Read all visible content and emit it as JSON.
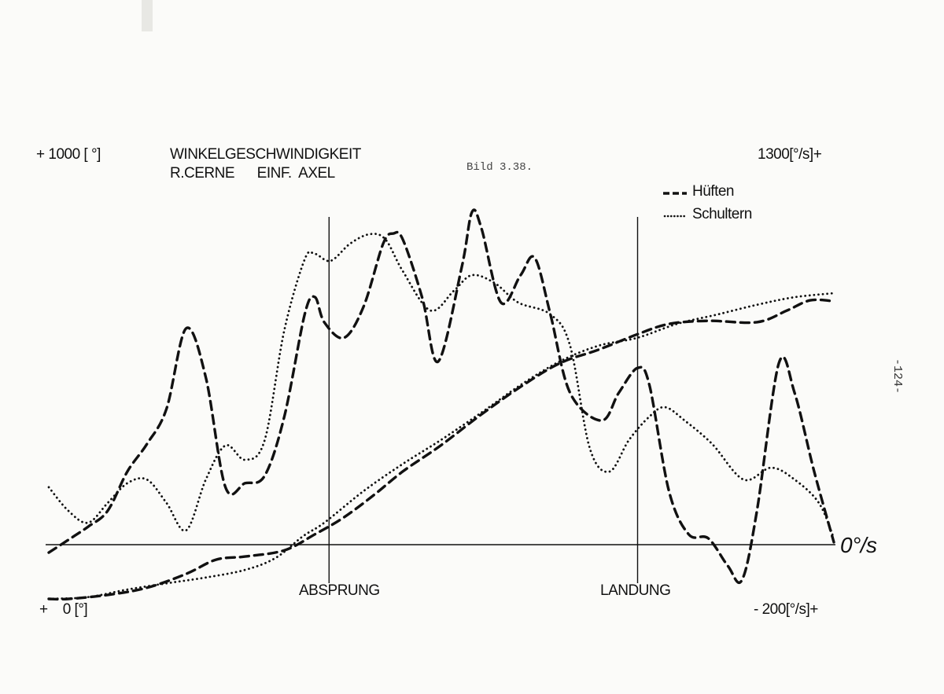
{
  "chart_data": {
    "type": "line",
    "title": "WINKELGESCHWINDIGKEIT",
    "subtitle": "R.CERNE      EINF.  AXEL",
    "figure_label": "Bild 3.38.",
    "page_number": "-124-",
    "left_axis": {
      "top_label": "+ 1000 [ °]",
      "bottom_label": "+    0 [°]",
      "range": [
        0,
        1000
      ],
      "unit": "°"
    },
    "right_axis": {
      "top_label": "1300[°/s]+",
      "bottom_label": "- 200[°/s]+",
      "zero_label": "0°/s",
      "range": [
        -200,
        1300
      ],
      "unit": "°/s"
    },
    "x_axis": {
      "note": "time, unlabeled; t expressed as percent of plotted interval"
    },
    "events": [
      {
        "label": "ABSPRUNG",
        "t": 35.7
      },
      {
        "label": "LANDUNG",
        "t": 75
      }
    ],
    "legend": {
      "position": "top-right",
      "items": [
        {
          "label": "Hüften",
          "style": "dashed"
        },
        {
          "label": "Schultern",
          "style": "dotted"
        }
      ]
    },
    "series": [
      {
        "name": "Hüften",
        "quantity": "angular velocity",
        "axis": "right",
        "style": "dashed",
        "points": [
          [
            0,
            -26
          ],
          [
            2.5,
            16
          ],
          [
            5,
            59
          ],
          [
            7.5,
            111
          ],
          [
            10,
            240
          ],
          [
            12.5,
            331
          ],
          [
            15,
            447
          ],
          [
            17.5,
            711
          ],
          [
            20,
            550
          ],
          [
            22.5,
            189
          ],
          [
            25,
            202
          ],
          [
            27.5,
            227
          ],
          [
            30,
            421
          ],
          [
            32.6,
            757
          ],
          [
            33.9,
            814
          ],
          [
            35.1,
            731
          ],
          [
            37.6,
            680
          ],
          [
            40.1,
            783
          ],
          [
            42.6,
            990
          ],
          [
            43.9,
            1023
          ],
          [
            45.1,
            1003
          ],
          [
            47.6,
            809
          ],
          [
            49.6,
            602
          ],
          [
            52.6,
            912
          ],
          [
            53.9,
            1093
          ],
          [
            55.1,
            1041
          ],
          [
            57.6,
            796
          ],
          [
            60.1,
            886
          ],
          [
            61.9,
            943
          ],
          [
            63.9,
            757
          ],
          [
            66.4,
            499
          ],
          [
            70.4,
            408
          ],
          [
            72.6,
            499
          ],
          [
            75,
            581
          ],
          [
            76.5,
            525
          ],
          [
            79,
            176
          ],
          [
            81.5,
            34
          ],
          [
            84,
            21
          ],
          [
            86.5,
            -70
          ],
          [
            88.3,
            -116
          ],
          [
            90.2,
            111
          ],
          [
            93,
            597
          ],
          [
            95,
            499
          ],
          [
            97.5,
            240
          ],
          [
            100,
            8
          ]
        ]
      },
      {
        "name": "Schultern",
        "quantity": "angular velocity",
        "axis": "right",
        "style": "dotted",
        "points": [
          [
            0,
            189
          ],
          [
            2.5,
            111
          ],
          [
            5,
            72
          ],
          [
            7.5,
            137
          ],
          [
            10,
            202
          ],
          [
            12.5,
            214
          ],
          [
            15,
            137
          ],
          [
            17.5,
            47
          ],
          [
            20,
            214
          ],
          [
            22.5,
            326
          ],
          [
            25,
            279
          ],
          [
            27.5,
            344
          ],
          [
            30,
            705
          ],
          [
            32.6,
            938
          ],
          [
            33.9,
            956
          ],
          [
            35.9,
            933
          ],
          [
            38.4,
            990
          ],
          [
            40.9,
            1021
          ],
          [
            42.9,
            1003
          ],
          [
            45.1,
            899
          ],
          [
            48.6,
            770
          ],
          [
            51.6,
            835
          ],
          [
            53.9,
            886
          ],
          [
            56.8,
            860
          ],
          [
            59.8,
            796
          ],
          [
            63.9,
            757
          ],
          [
            66.4,
            654
          ],
          [
            68.9,
            318
          ],
          [
            71.4,
            240
          ],
          [
            73.9,
            344
          ],
          [
            76.5,
            421
          ],
          [
            78.5,
            452
          ],
          [
            81,
            408
          ],
          [
            84.5,
            331
          ],
          [
            88.5,
            214
          ],
          [
            92,
            253
          ],
          [
            95,
            214
          ],
          [
            98.1,
            137
          ],
          [
            100,
            21
          ]
        ]
      },
      {
        "name": "Hüften",
        "quantity": "angle",
        "axis": "left",
        "style": "dashed",
        "points": [
          [
            0,
            0
          ],
          [
            2.5,
            0
          ],
          [
            7.5,
            9
          ],
          [
            12.5,
            25
          ],
          [
            17.5,
            56
          ],
          [
            21.3,
            88
          ],
          [
            25,
            95
          ],
          [
            30,
            109
          ],
          [
            33.9,
            145
          ],
          [
            37.6,
            183
          ],
          [
            41.4,
            233
          ],
          [
            45.1,
            286
          ],
          [
            49.9,
            344
          ],
          [
            55.1,
            414
          ],
          [
            60.1,
            476
          ],
          [
            65.1,
            529
          ],
          [
            70,
            559
          ],
          [
            75,
            594
          ],
          [
            79,
            617
          ],
          [
            84,
            624
          ],
          [
            90.2,
            621
          ],
          [
            94,
            647
          ],
          [
            97,
            670
          ],
          [
            100,
            668
          ]
        ]
      },
      {
        "name": "Schultern",
        "quantity": "angle",
        "axis": "left",
        "style": "dotted",
        "points": [
          [
            0,
            0
          ],
          [
            5,
            4
          ],
          [
            10,
            21
          ],
          [
            15,
            35
          ],
          [
            20,
            48
          ],
          [
            25,
            65
          ],
          [
            28.9,
            92
          ],
          [
            32.4,
            141
          ],
          [
            35.1,
            171
          ],
          [
            40.1,
            242
          ],
          [
            45.1,
            303
          ],
          [
            49.9,
            356
          ],
          [
            55.1,
            418
          ],
          [
            60.1,
            480
          ],
          [
            65.1,
            533
          ],
          [
            70,
            568
          ],
          [
            75,
            586
          ],
          [
            80,
            617
          ],
          [
            85.1,
            638
          ],
          [
            90.2,
            660
          ],
          [
            95,
            677
          ],
          [
            100,
            686
          ]
        ]
      }
    ],
    "colors": {
      "ink": "#111111",
      "paper": "#fbfbf9"
    }
  }
}
